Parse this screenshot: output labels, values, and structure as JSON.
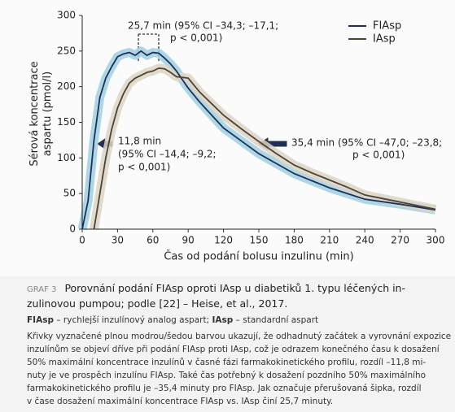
{
  "chart_data": {
    "type": "line",
    "x": [
      0,
      5,
      10,
      15,
      20,
      25,
      30,
      35,
      40,
      45,
      50,
      55,
      60,
      65,
      70,
      75,
      80,
      90,
      100,
      110,
      120,
      135,
      150,
      165,
      180,
      195,
      210,
      225,
      240,
      270,
      300
    ],
    "series": [
      {
        "name": "FIAsp",
        "color": "#1f2f5c",
        "band_color": "#9fd0df",
        "values": [
          0,
          40,
          125,
          185,
          212,
          228,
          242,
          246,
          248,
          244,
          250,
          244,
          248,
          247,
          240,
          232,
          222,
          198,
          178,
          160,
          142,
          124,
          106,
          92,
          78,
          68,
          58,
          50,
          42,
          35,
          27
        ]
      },
      {
        "name": "IAsp",
        "color": "#4a4538",
        "band_color": "#ddd5c4",
        "values": [
          null,
          null,
          0,
          50,
          100,
          140,
          170,
          190,
          205,
          212,
          216,
          220,
          222,
          226,
          225,
          220,
          214,
          212,
          192,
          176,
          160,
          141,
          123,
          106,
          90,
          79,
          69,
          59,
          48,
          38,
          28
        ]
      }
    ],
    "xlim": [
      0,
      300
    ],
    "ylim": [
      0,
      300
    ],
    "xticks": [
      0,
      30,
      60,
      90,
      120,
      150,
      180,
      210,
      240,
      270,
      300
    ],
    "yticks": [
      0,
      50,
      100,
      150,
      200,
      250,
      300
    ],
    "x_label": "Čas od podání bolusu inzulinu (min)",
    "y_label": [
      "Sérová koncentrace",
      "aspartu (pmol/l)"
    ],
    "annotations": {
      "peak": [
        "25,7 min  (95% CI –34,3; –17,1;",
        "p < 0,001)"
      ],
      "early": [
        "11,8 min",
        "(95% CI –14,4; –9,2;",
        "p < 0,001)"
      ],
      "late": [
        "35,4 min  (95% CI –47,0; –23,8;",
        "p < 0,001)"
      ]
    }
  },
  "caption": {
    "label": "GRAF 3",
    "title": [
      "Porovnání podání FIAsp oproti IAsp u diabetiků 1. typu léčených in-",
      "zulinovou pumpou; podle [22] – Heise, et al., 2017."
    ],
    "definitions": [
      "FIAsp",
      " – rychlejší inzulínový analog aspart; ",
      "IAsp",
      " – standardní aspart"
    ],
    "text": [
      "Křivky vyznačené plnou modrou/šedou barvou ukazují, že odhadnutý začátek a vyrovnání expozice",
      "inzulínům se objeví dříve při podání FIAsp proti IAsp, což je odrazem konečného času k dosažení",
      "50% maximální koncentrace inzulínů v časné fázi farmakokinetického profilu, rozdíl –11,8 mi-",
      "nuty je ve prospěch inzulínu FIAsp. Také čas potřebný k dosažení pozdního 50% maximálního",
      "farmakokinetického profilu je –35,4 minuty pro FIAsp. Jak označuje přerušovaná šipka, rozdíl",
      "v čase dosažení maximální koncentrace FIAsp vs. IAsp činí 25,7 minuty."
    ]
  }
}
